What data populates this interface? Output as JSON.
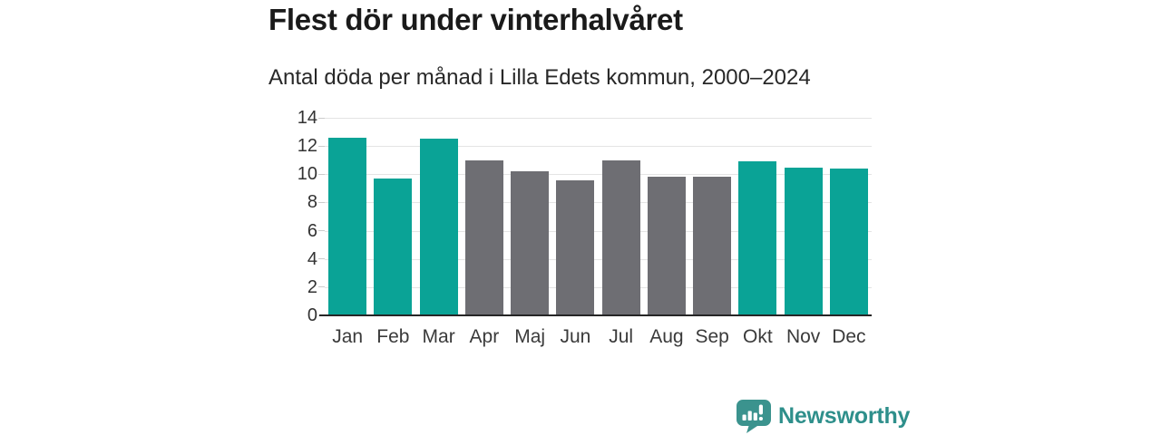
{
  "header": {
    "title": "Flest dör under vinterhalvåret",
    "subtitle": "Antal döda per månad i Lilla Edets kommun, 2000–2024"
  },
  "chart_data": {
    "type": "bar",
    "title": "Flest dör under vinterhalvåret",
    "subtitle": "Antal döda per månad i Lilla Edets kommun, 2000–2024",
    "categories": [
      "Jan",
      "Feb",
      "Mar",
      "Apr",
      "Maj",
      "Jun",
      "Jul",
      "Aug",
      "Sep",
      "Okt",
      "Nov",
      "Dec"
    ],
    "values": [
      12.6,
      9.7,
      12.5,
      11.0,
      10.2,
      9.6,
      11.0,
      9.8,
      9.8,
      10.9,
      10.5,
      10.4
    ],
    "highlighted": [
      true,
      true,
      true,
      false,
      false,
      false,
      false,
      false,
      false,
      true,
      true,
      true
    ],
    "xlabel": "",
    "ylabel": "",
    "ylim": [
      0,
      14
    ],
    "yticks": [
      0,
      2,
      4,
      6,
      8,
      10,
      12,
      14
    ],
    "grid": true,
    "legend": "none",
    "colors": {
      "highlight": "#0aa396",
      "muted": "#6e6e73",
      "gridline": "#e4e4e4",
      "axis": "#262626"
    }
  },
  "footer": {
    "brand": "Newsworthy",
    "brand_color": "#2e8f8b",
    "logo_icon": "bar-chart-speech-bubble-icon"
  }
}
